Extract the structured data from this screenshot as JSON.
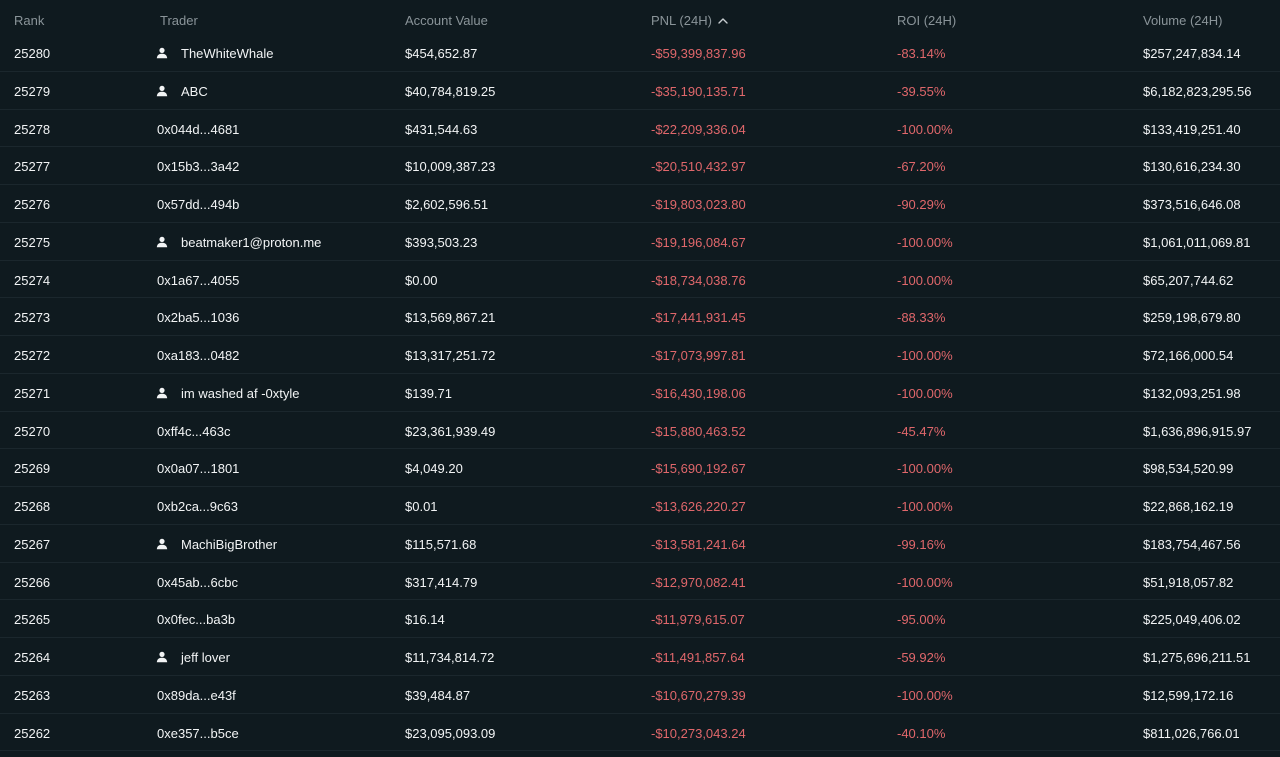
{
  "headers": {
    "rank": "Rank",
    "trader": "Trader",
    "account_value": "Account Value",
    "pnl": "PNL (24H)",
    "roi": "ROI (24H)",
    "volume": "Volume (24H)",
    "sort_icon": "chevron-up-icon"
  },
  "colors": {
    "background": "#0f1a1f",
    "negative": "#e0676b",
    "header_text": "#8a9499",
    "text": "#f2f4f5"
  },
  "rows": [
    {
      "rank": "25280",
      "trader": "TheWhiteWhale",
      "named": true,
      "account_value": "$454,652.87",
      "pnl": "-$59,399,837.96",
      "roi": "-83.14%",
      "volume": "$257,247,834.14"
    },
    {
      "rank": "25279",
      "trader": "ABC",
      "named": true,
      "account_value": "$40,784,819.25",
      "pnl": "-$35,190,135.71",
      "roi": "-39.55%",
      "volume": "$6,182,823,295.56"
    },
    {
      "rank": "25278",
      "trader": "0x044d...4681",
      "named": false,
      "account_value": "$431,544.63",
      "pnl": "-$22,209,336.04",
      "roi": "-100.00%",
      "volume": "$133,419,251.40"
    },
    {
      "rank": "25277",
      "trader": "0x15b3...3a42",
      "named": false,
      "account_value": "$10,009,387.23",
      "pnl": "-$20,510,432.97",
      "roi": "-67.20%",
      "volume": "$130,616,234.30"
    },
    {
      "rank": "25276",
      "trader": "0x57dd...494b",
      "named": false,
      "account_value": "$2,602,596.51",
      "pnl": "-$19,803,023.80",
      "roi": "-90.29%",
      "volume": "$373,516,646.08"
    },
    {
      "rank": "25275",
      "trader": "beatmaker1@proton.me",
      "named": true,
      "account_value": "$393,503.23",
      "pnl": "-$19,196,084.67",
      "roi": "-100.00%",
      "volume": "$1,061,011,069.81"
    },
    {
      "rank": "25274",
      "trader": "0x1a67...4055",
      "named": false,
      "account_value": "$0.00",
      "pnl": "-$18,734,038.76",
      "roi": "-100.00%",
      "volume": "$65,207,744.62"
    },
    {
      "rank": "25273",
      "trader": "0x2ba5...1036",
      "named": false,
      "account_value": "$13,569,867.21",
      "pnl": "-$17,441,931.45",
      "roi": "-88.33%",
      "volume": "$259,198,679.80"
    },
    {
      "rank": "25272",
      "trader": "0xa183...0482",
      "named": false,
      "account_value": "$13,317,251.72",
      "pnl": "-$17,073,997.81",
      "roi": "-100.00%",
      "volume": "$72,166,000.54"
    },
    {
      "rank": "25271",
      "trader": "im washed af -0xtyle",
      "named": true,
      "account_value": "$139.71",
      "pnl": "-$16,430,198.06",
      "roi": "-100.00%",
      "volume": "$132,093,251.98"
    },
    {
      "rank": "25270",
      "trader": "0xff4c...463c",
      "named": false,
      "account_value": "$23,361,939.49",
      "pnl": "-$15,880,463.52",
      "roi": "-45.47%",
      "volume": "$1,636,896,915.97"
    },
    {
      "rank": "25269",
      "trader": "0x0a07...1801",
      "named": false,
      "account_value": "$4,049.20",
      "pnl": "-$15,690,192.67",
      "roi": "-100.00%",
      "volume": "$98,534,520.99"
    },
    {
      "rank": "25268",
      "trader": "0xb2ca...9c63",
      "named": false,
      "account_value": "$0.01",
      "pnl": "-$13,626,220.27",
      "roi": "-100.00%",
      "volume": "$22,868,162.19"
    },
    {
      "rank": "25267",
      "trader": "MachiBigBrother",
      "named": true,
      "account_value": "$115,571.68",
      "pnl": "-$13,581,241.64",
      "roi": "-99.16%",
      "volume": "$183,754,467.56"
    },
    {
      "rank": "25266",
      "trader": "0x45ab...6cbc",
      "named": false,
      "account_value": "$317,414.79",
      "pnl": "-$12,970,082.41",
      "roi": "-100.00%",
      "volume": "$51,918,057.82"
    },
    {
      "rank": "25265",
      "trader": "0x0fec...ba3b",
      "named": false,
      "account_value": "$16.14",
      "pnl": "-$11,979,615.07",
      "roi": "-95.00%",
      "volume": "$225,049,406.02"
    },
    {
      "rank": "25264",
      "trader": "jeff lover",
      "named": true,
      "account_value": "$11,734,814.72",
      "pnl": "-$11,491,857.64",
      "roi": "-59.92%",
      "volume": "$1,275,696,211.51"
    },
    {
      "rank": "25263",
      "trader": "0x89da...e43f",
      "named": false,
      "account_value": "$39,484.87",
      "pnl": "-$10,670,279.39",
      "roi": "-100.00%",
      "volume": "$12,599,172.16"
    },
    {
      "rank": "25262",
      "trader": "0xe357...b5ce",
      "named": false,
      "account_value": "$23,095,093.09",
      "pnl": "-$10,273,043.24",
      "roi": "-40.10%",
      "volume": "$811,026,766.01"
    }
  ]
}
